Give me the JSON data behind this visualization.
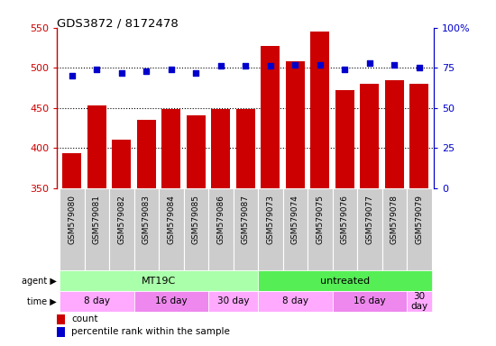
{
  "title": "GDS3872 / 8172478",
  "samples": [
    "GSM579080",
    "GSM579081",
    "GSM579082",
    "GSM579083",
    "GSM579084",
    "GSM579085",
    "GSM579086",
    "GSM579087",
    "GSM579073",
    "GSM579074",
    "GSM579075",
    "GSM579076",
    "GSM579077",
    "GSM579078",
    "GSM579079"
  ],
  "counts": [
    393,
    453,
    410,
    435,
    448,
    441,
    448,
    449,
    527,
    508,
    545,
    472,
    480,
    484,
    480
  ],
  "percentiles": [
    70,
    74,
    72,
    73,
    74,
    72,
    76,
    76,
    76,
    77,
    77,
    74,
    78,
    77,
    75
  ],
  "ylim_left": [
    350,
    550
  ],
  "ylim_right": [
    0,
    100
  ],
  "yticks_left": [
    350,
    400,
    450,
    500,
    550
  ],
  "yticks_right": [
    0,
    25,
    50,
    75,
    100
  ],
  "hlines": [
    400,
    450,
    500
  ],
  "bar_color": "#cc0000",
  "dot_color": "#0000cc",
  "background_color": "#ffffff",
  "xticklabel_bg": "#cccccc",
  "agent_groups": [
    {
      "label": "MT19C",
      "start": 0,
      "end": 8,
      "color": "#aaffaa"
    },
    {
      "label": "untreated",
      "start": 8,
      "end": 15,
      "color": "#55ee55"
    }
  ],
  "time_groups": [
    {
      "label": "8 day",
      "start": 0,
      "end": 3,
      "color": "#ffaaff"
    },
    {
      "label": "16 day",
      "start": 3,
      "end": 6,
      "color": "#ee88ee"
    },
    {
      "label": "30 day",
      "start": 6,
      "end": 8,
      "color": "#ffaaff"
    },
    {
      "label": "8 day",
      "start": 8,
      "end": 11,
      "color": "#ffaaff"
    },
    {
      "label": "16 day",
      "start": 11,
      "end": 14,
      "color": "#ee88ee"
    },
    {
      "label": "30\nday",
      "start": 14,
      "end": 15,
      "color": "#ffaaff"
    }
  ],
  "legend_count_label": "count",
  "legend_pct_label": "percentile rank within the sample",
  "tick_color_left": "#cc0000",
  "tick_color_right": "#0000cc"
}
